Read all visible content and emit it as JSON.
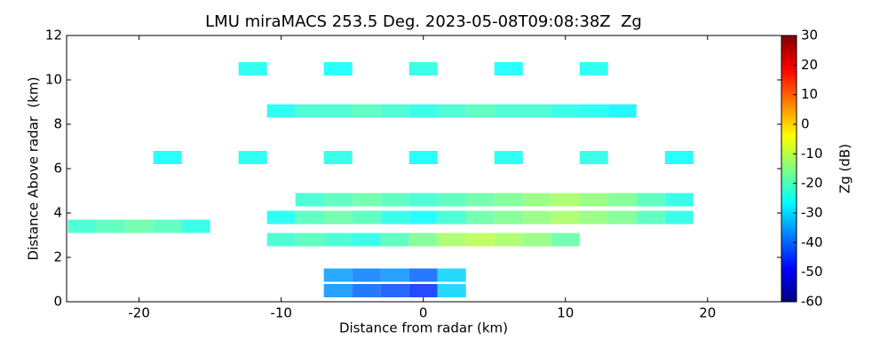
{
  "chart_data": {
    "type": "heatmap",
    "title": "LMU miraMACS 253.5 Deg. 2023-05-08T09:08:38Z  Zg",
    "x_label": "Distance from radar (km)",
    "y_label": "Distance Above radar  (km)",
    "colorbar_label": "Zg (dB)",
    "xlim": [
      -25.1,
      25.2
    ],
    "xticks": [
      -20,
      -10,
      0,
      10,
      20
    ],
    "ylim": [
      0,
      12
    ],
    "yticks": [
      0,
      2,
      4,
      6,
      8,
      10,
      12
    ],
    "clim": [
      -60,
      30
    ],
    "cticks": [
      -60,
      -50,
      -40,
      -30,
      -20,
      -10,
      0,
      10,
      20,
      30
    ],
    "colormap": "jet",
    "x": [
      -10,
      -8,
      -6,
      -4,
      -2,
      0,
      2,
      4,
      6,
      8,
      10,
      12,
      14,
      -8,
      -6,
      -4,
      -2,
      0,
      2,
      4,
      6,
      8,
      10,
      12,
      14,
      16,
      18,
      -10,
      -8,
      -6,
      -4,
      -2,
      0,
      2,
      4,
      6,
      8,
      10,
      12,
      14,
      16,
      18,
      -10,
      -8,
      -6,
      -4,
      -2,
      0,
      2,
      4,
      6,
      8,
      10,
      -6,
      -4,
      -2,
      0,
      2,
      -6,
      -4,
      -2,
      0,
      2,
      -24,
      -22,
      -20,
      -18,
      -16,
      -18,
      -12,
      -6,
      0,
      6,
      12,
      18,
      -12,
      -6,
      0,
      6,
      12
    ],
    "y": [
      8.6,
      8.6,
      8.6,
      8.6,
      8.6,
      8.6,
      8.6,
      8.6,
      8.6,
      8.6,
      8.6,
      8.6,
      8.6,
      4.6,
      4.6,
      4.6,
      4.6,
      4.6,
      4.6,
      4.6,
      4.6,
      4.6,
      4.6,
      4.6,
      4.6,
      4.6,
      4.6,
      3.8,
      3.8,
      3.8,
      3.8,
      3.8,
      3.8,
      3.8,
      3.8,
      3.8,
      3.8,
      3.8,
      3.8,
      3.8,
      3.8,
      3.8,
      2.8,
      2.8,
      2.8,
      2.8,
      2.8,
      2.8,
      2.8,
      2.8,
      2.8,
      2.8,
      2.8,
      1.2,
      1.2,
      1.2,
      1.2,
      1.2,
      0.5,
      0.5,
      0.5,
      0.5,
      0.5,
      3.4,
      3.4,
      3.4,
      3.4,
      3.4,
      6.5,
      6.5,
      6.5,
      6.5,
      6.5,
      6.5,
      6.5,
      10.5,
      10.5,
      10.5,
      10.5,
      10.5
    ],
    "values": [
      -25,
      -22,
      -22,
      -20,
      -22,
      -24,
      -22,
      -20,
      -22,
      -22,
      -24,
      -25,
      -27,
      -22,
      -20,
      -18,
      -20,
      -22,
      -20,
      -18,
      -16,
      -14,
      -12,
      -14,
      -16,
      -20,
      -24,
      -25,
      -20,
      -18,
      -20,
      -24,
      -26,
      -22,
      -18,
      -16,
      -14,
      -12,
      -14,
      -16,
      -20,
      -24,
      -22,
      -20,
      -22,
      -24,
      -20,
      -16,
      -12,
      -10,
      -12,
      -14,
      -18,
      -35,
      -38,
      -36,
      -40,
      -30,
      -36,
      -40,
      -42,
      -45,
      -30,
      -22,
      -20,
      -18,
      -20,
      -24,
      -26,
      -25,
      -24,
      -26,
      -25,
      -24,
      -26,
      -25,
      -26,
      -24,
      -26,
      -25
    ]
  }
}
